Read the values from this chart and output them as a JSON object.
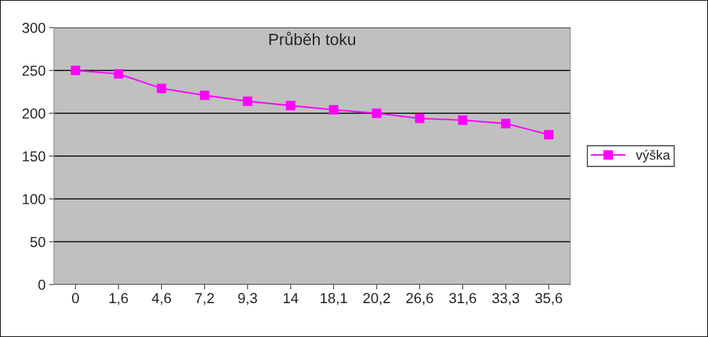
{
  "chart_data": {
    "type": "line",
    "title": "Průběh toku",
    "categories": [
      "0",
      "1,6",
      "4,6",
      "7,2",
      "9,3",
      "14",
      "18,1",
      "20,2",
      "26,6",
      "31,6",
      "33,3",
      "35,6"
    ],
    "series": [
      {
        "name": "výška",
        "color": "#ff00ff",
        "values": [
          250,
          246,
          229,
          221,
          214,
          209,
          204,
          200,
          194,
          192,
          188,
          175
        ]
      }
    ],
    "ylim": [
      0,
      300
    ],
    "yticks": [
      0,
      50,
      100,
      150,
      200,
      250,
      300
    ],
    "grid": "y",
    "legend": "right",
    "marker": "square",
    "line_style": "solid"
  }
}
